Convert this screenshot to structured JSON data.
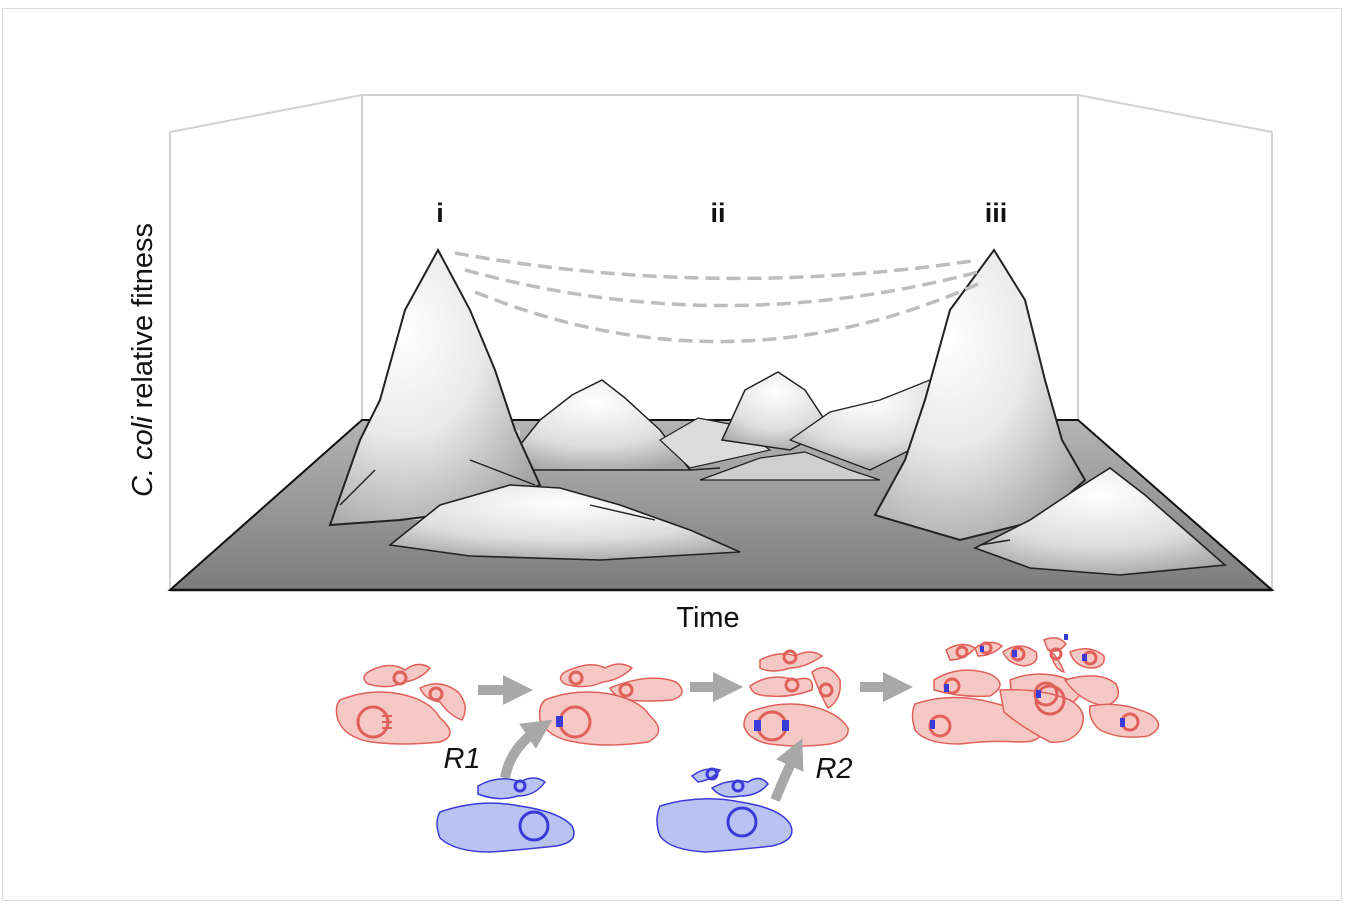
{
  "figure": {
    "peak_labels": [
      "i",
      "ii",
      "iii"
    ],
    "y_axis": {
      "species": "C. coli",
      "rest": " relative fitness"
    },
    "x_axis": "Time",
    "routes": [
      "R1",
      "R2"
    ]
  },
  "colors": {
    "recipient_fill": "#f6c8c5",
    "recipient_stroke": "#e0605a",
    "donor_fill": "#b9c3f2",
    "donor_stroke": "#3a3ad8",
    "arrow": "#a8a8a8",
    "ground": "#8e8e8e",
    "frame_lines": "#d2d2d2"
  }
}
